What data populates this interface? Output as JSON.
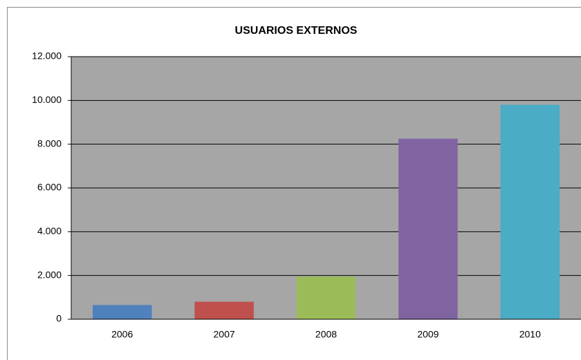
{
  "chart_data": {
    "type": "bar",
    "title": "USUARIOS EXTERNOS",
    "categories": [
      "2006",
      "2007",
      "2008",
      "2009",
      "2010"
    ],
    "values": [
      650,
      800,
      1950,
      8250,
      9800
    ],
    "colors": [
      "#4f81bd",
      "#c0504d",
      "#9bbb59",
      "#8064a2",
      "#4bacc6"
    ],
    "ylim": [
      0,
      12000
    ],
    "yticks": [
      0,
      {
        "value": 2000,
        "label": "2.000"
      },
      {
        "value": 4000,
        "label": "4.000"
      },
      {
        "value": 6000,
        "label": "6.000"
      },
      {
        "value": 8000,
        "label": "8.000"
      },
      {
        "value": 10000,
        "label": "10.000"
      },
      {
        "value": 12000,
        "label": "12.000"
      }
    ],
    "grid": true
  }
}
